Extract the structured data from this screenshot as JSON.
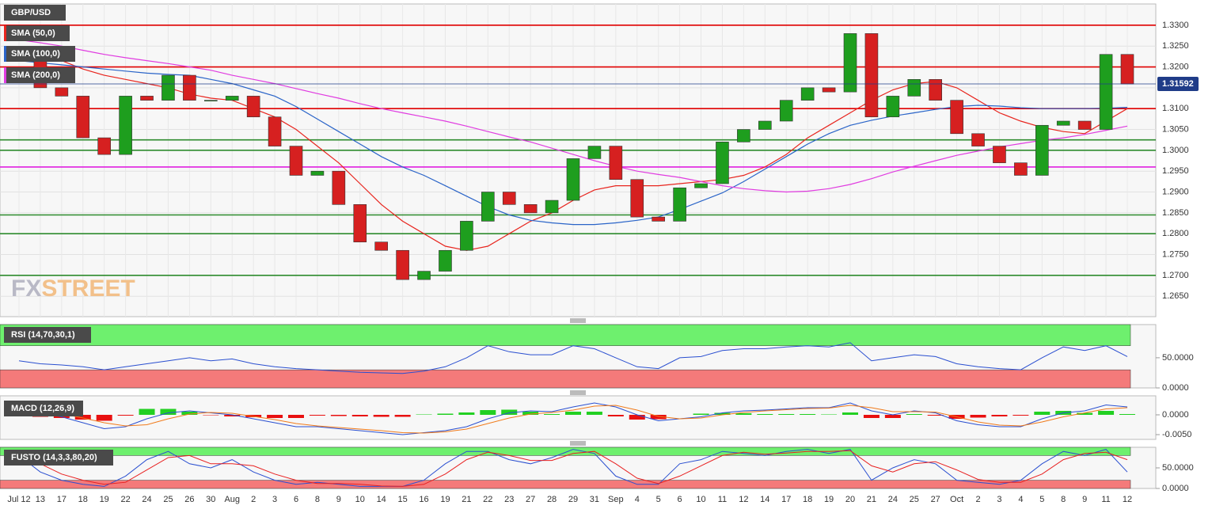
{
  "chart_data": [
    {
      "type": "candlestick",
      "title": "GBP/USD",
      "categories": [
        "Jul 12",
        "13",
        "17",
        "18",
        "19",
        "22",
        "24",
        "25",
        "26",
        "30",
        "Aug",
        "2",
        "3",
        "6",
        "8",
        "9",
        "10",
        "14",
        "15",
        "16",
        "19",
        "21",
        "22",
        "23",
        "27",
        "28",
        "29",
        "31",
        "Sep",
        "4",
        "5",
        "6",
        "10",
        "11",
        "12",
        "14",
        "17",
        "18",
        "19",
        "20",
        "21",
        "24",
        "25",
        "27",
        "Oct",
        "2",
        "3",
        "4",
        "5",
        "8",
        "9",
        "11",
        "12"
      ],
      "values": [
        1.323,
        1.315,
        1.313,
        1.303,
        1.299,
        1.313,
        1.312,
        1.318,
        1.312,
        1.312,
        1.313,
        1.308,
        1.301,
        1.294,
        1.295,
        1.287,
        1.278,
        1.276,
        1.269,
        1.271,
        1.276,
        1.283,
        1.29,
        1.287,
        1.285,
        1.288,
        1.298,
        1.301,
        1.293,
        1.284,
        1.283,
        1.291,
        1.292,
        1.302,
        1.305,
        1.307,
        1.312,
        1.315,
        1.314,
        1.328,
        1.308,
        1.313,
        1.317,
        1.312,
        1.304,
        1.301,
        1.297,
        1.294,
        1.306,
        1.307,
        1.305,
        1.323,
        1.3159
      ],
      "up_color": "#1e9e1e",
      "down_color": "#d62020",
      "series": [
        {
          "name": "SMA (50,0)",
          "color": "#e8251e",
          "values": [
            1.3245,
            1.3235,
            1.3215,
            1.3195,
            1.318,
            1.317,
            1.316,
            1.315,
            1.3135,
            1.3125,
            1.312,
            1.31,
            1.308,
            1.305,
            1.301,
            1.297,
            1.292,
            1.287,
            1.283,
            1.28,
            1.277,
            1.276,
            1.277,
            1.28,
            1.283,
            1.285,
            1.288,
            1.2905,
            1.2915,
            1.2915,
            1.2915,
            1.292,
            1.2925,
            1.293,
            1.294,
            1.296,
            1.299,
            1.303,
            1.306,
            1.309,
            1.312,
            1.3145,
            1.316,
            1.3165,
            1.315,
            1.312,
            1.309,
            1.307,
            1.3055,
            1.3045,
            1.304,
            1.307,
            1.31
          ]
        },
        {
          "name": "SMA (100,0)",
          "color": "#2a64c8",
          "values": [
            1.3215,
            1.321,
            1.3205,
            1.32,
            1.3195,
            1.319,
            1.3185,
            1.3182,
            1.318,
            1.317,
            1.316,
            1.3145,
            1.313,
            1.3105,
            1.3075,
            1.3045,
            1.3015,
            1.2985,
            1.296,
            1.294,
            1.2915,
            1.289,
            1.2865,
            1.2845,
            1.2832,
            1.2826,
            1.2822,
            1.2822,
            1.2826,
            1.2832,
            1.284,
            1.2858,
            1.2878,
            1.2898,
            1.2925,
            1.2955,
            1.2985,
            1.3015,
            1.304,
            1.306,
            1.3072,
            1.3082,
            1.309,
            1.3098,
            1.3105,
            1.3108,
            1.3106,
            1.3102,
            1.31,
            1.31,
            1.31,
            1.3101,
            1.3103
          ]
        },
        {
          "name": "SMA (200,0)",
          "color": "#e03ce0",
          "values": [
            1.3265,
            1.3258,
            1.325,
            1.324,
            1.323,
            1.3222,
            1.3215,
            1.3208,
            1.32,
            1.3192,
            1.318,
            1.317,
            1.316,
            1.3148,
            1.3136,
            1.3125,
            1.3112,
            1.31,
            1.309,
            1.308,
            1.307,
            1.3058,
            1.3045,
            1.3032,
            1.302,
            1.3005,
            1.299,
            1.2975,
            1.2962,
            1.295,
            1.2942,
            1.2935,
            1.2925,
            1.2915,
            1.2908,
            1.2903,
            1.29,
            1.2902,
            1.2908,
            1.2918,
            1.2932,
            1.2948,
            1.2962,
            1.2975,
            1.2988,
            1.2998,
            1.3008,
            1.3016,
            1.3024,
            1.303,
            1.3038,
            1.3048,
            1.3058
          ]
        }
      ],
      "levels": [
        {
          "value": 1.33,
          "color": "#e00000"
        },
        {
          "value": 1.32,
          "color": "#e00000"
        },
        {
          "value": 1.31,
          "color": "#e00000"
        },
        {
          "value": 1.3025,
          "color": "#2e8b2e"
        },
        {
          "value": 1.3,
          "color": "#2e8b2e"
        },
        {
          "value": 1.296,
          "color": "#e020e0"
        },
        {
          "value": 1.2845,
          "color": "#2e8b2e"
        },
        {
          "value": 1.28,
          "color": "#2e8b2e"
        },
        {
          "value": 1.27,
          "color": "#2e8b2e"
        }
      ],
      "last_price": {
        "value": 1.31592,
        "label": "1.31592"
      },
      "ylim": [
        1.2601,
        1.3351
      ],
      "yticks": [
        {
          "value": 1.265,
          "label": "1.2650"
        },
        {
          "value": 1.27,
          "label": "1.2700"
        },
        {
          "value": 1.275,
          "label": "1.2750"
        },
        {
          "value": 1.28,
          "label": "1.2800"
        },
        {
          "value": 1.285,
          "label": "1.2850"
        },
        {
          "value": 1.29,
          "label": "1.2900"
        },
        {
          "value": 1.295,
          "label": "1.2950"
        },
        {
          "value": 1.3,
          "label": "1.3000"
        },
        {
          "value": 1.305,
          "label": "1.3050"
        },
        {
          "value": 1.31,
          "label": "1.3100"
        },
        {
          "value": 1.315,
          "label": "1.3150"
        },
        {
          "value": 1.32,
          "label": "1.3200"
        },
        {
          "value": 1.325,
          "label": "1.3250"
        },
        {
          "value": 1.33,
          "label": "1.3300"
        }
      ],
      "grid": true,
      "watermark": [
        "FX",
        "STREET"
      ]
    },
    {
      "type": "line",
      "title": "RSI (14,70,30,1)",
      "series": [
        {
          "color": "#2a4fd0",
          "values": [
            45,
            40,
            38,
            35,
            30,
            35,
            40,
            45,
            50,
            45,
            48,
            40,
            35,
            32,
            30,
            28,
            26,
            25,
            24,
            28,
            35,
            50,
            70,
            60,
            55,
            55,
            70,
            65,
            50,
            35,
            32,
            50,
            52,
            62,
            65,
            65,
            68,
            70,
            68,
            75,
            45,
            50,
            55,
            52,
            40,
            35,
            32,
            30,
            50,
            68,
            62,
            70,
            52
          ]
        }
      ],
      "overbought": 70,
      "oversold": 30,
      "upper_color": "#6ef06e",
      "lower_color": "#f47a7a",
      "ylim": [
        0,
        105
      ],
      "yticks": [
        {
          "value": 0,
          "label": "0.0000"
        },
        {
          "value": 50,
          "label": "50.0000"
        }
      ]
    },
    {
      "type": "macd",
      "title": "MACD (12,26,9)",
      "series": [
        {
          "color": "#2a4fd0",
          "values": [
            0.001,
            0.0005,
            -0.0005,
            -0.002,
            -0.0035,
            -0.003,
            -0.001,
            0.0005,
            0.001,
            0.0005,
            0.0,
            -0.001,
            -0.002,
            -0.003,
            -0.003,
            -0.0035,
            -0.004,
            -0.0045,
            -0.005,
            -0.0045,
            -0.004,
            -0.003,
            -0.001,
            0.0005,
            0.001,
            0.0008,
            0.002,
            0.003,
            0.002,
            0.0,
            -0.0015,
            -0.001,
            -0.0005,
            0.0005,
            0.001,
            0.0012,
            0.0015,
            0.0018,
            0.0018,
            0.003,
            0.001,
            0.0,
            0.001,
            0.0005,
            -0.0015,
            -0.0025,
            -0.003,
            -0.003,
            -0.001,
            0.0005,
            0.001,
            0.0025,
            0.002
          ]
        },
        {
          "color": "#f07a1a",
          "values": [
            0.0012,
            0.001,
            0.0003,
            -0.0008,
            -0.002,
            -0.0028,
            -0.0025,
            -0.001,
            0.0002,
            0.0006,
            0.0004,
            -0.0004,
            -0.0012,
            -0.0022,
            -0.0028,
            -0.0032,
            -0.0036,
            -0.004,
            -0.0045,
            -0.0046,
            -0.0043,
            -0.0036,
            -0.0022,
            -0.0008,
            0.0002,
            0.0006,
            0.0012,
            0.0022,
            0.0024,
            0.0012,
            -0.0004,
            -0.001,
            -0.0008,
            0.0,
            0.0006,
            0.001,
            0.0013,
            0.0016,
            0.0017,
            0.0024,
            0.0018,
            0.0008,
            0.0008,
            0.0007,
            -0.0005,
            -0.0018,
            -0.0026,
            -0.0028,
            -0.0018,
            -0.0005,
            0.0005,
            0.0015,
            0.0018
          ]
        }
      ],
      "histogram": [
        -0.0002,
        -0.0005,
        -0.0008,
        -0.0012,
        -0.0015,
        -0.0002,
        0.0015,
        0.0015,
        0.0008,
        -0.0001,
        -0.0004,
        -0.0006,
        -0.0008,
        -0.0008,
        -0.0002,
        -0.0003,
        -0.0004,
        -0.0005,
        -0.0005,
        0.0001,
        0.0003,
        0.0006,
        0.0012,
        0.0013,
        0.0008,
        0.0002,
        0.0008,
        0.0008,
        -0.0004,
        -0.0012,
        -0.0011,
        0.0,
        0.0003,
        0.0005,
        0.0004,
        0.0002,
        0.0002,
        0.0002,
        0.0001,
        0.0006,
        -0.0008,
        -0.0008,
        0.0002,
        -0.0002,
        -0.001,
        -0.0007,
        -0.0004,
        -0.0002,
        0.0008,
        0.001,
        0.0005,
        0.001,
        0.0002
      ],
      "up_color": "#22d022",
      "down_color": "#e81010",
      "ylim": [
        -0.0062,
        0.0048
      ],
      "yticks": [
        {
          "value": -0.005,
          "label": "-0.0050"
        },
        {
          "value": 0,
          "label": "0.0000"
        }
      ]
    },
    {
      "type": "line",
      "title": "FUSTO (14,3,3,80,20)",
      "series": [
        {
          "color": "#2a4fd0",
          "values": [
            80,
            40,
            20,
            10,
            5,
            30,
            70,
            90,
            60,
            50,
            70,
            40,
            20,
            10,
            15,
            10,
            5,
            5,
            5,
            20,
            60,
            90,
            90,
            70,
            60,
            75,
            95,
            85,
            30,
            10,
            10,
            60,
            70,
            90,
            85,
            80,
            90,
            95,
            85,
            95,
            20,
            50,
            70,
            60,
            20,
            15,
            10,
            20,
            60,
            90,
            80,
            95,
            40
          ]
        },
        {
          "color": "#e82020",
          "values": [
            75,
            60,
            35,
            20,
            10,
            15,
            45,
            75,
            80,
            60,
            60,
            55,
            35,
            20,
            12,
            12,
            10,
            6,
            5,
            10,
            35,
            70,
            88,
            80,
            68,
            68,
            85,
            90,
            60,
            25,
            12,
            30,
            55,
            80,
            88,
            83,
            86,
            90,
            90,
            92,
            55,
            40,
            60,
            65,
            45,
            22,
            15,
            15,
            35,
            70,
            85,
            88,
            70
          ]
        }
      ],
      "overbought": 80,
      "oversold": 20,
      "upper_color": "#6ef06e",
      "lower_color": "#f47a7a",
      "ylim": [
        0,
        100
      ],
      "yticks": [
        {
          "value": 0,
          "label": "0.0000"
        },
        {
          "value": 50,
          "label": "50.0000"
        }
      ]
    }
  ]
}
